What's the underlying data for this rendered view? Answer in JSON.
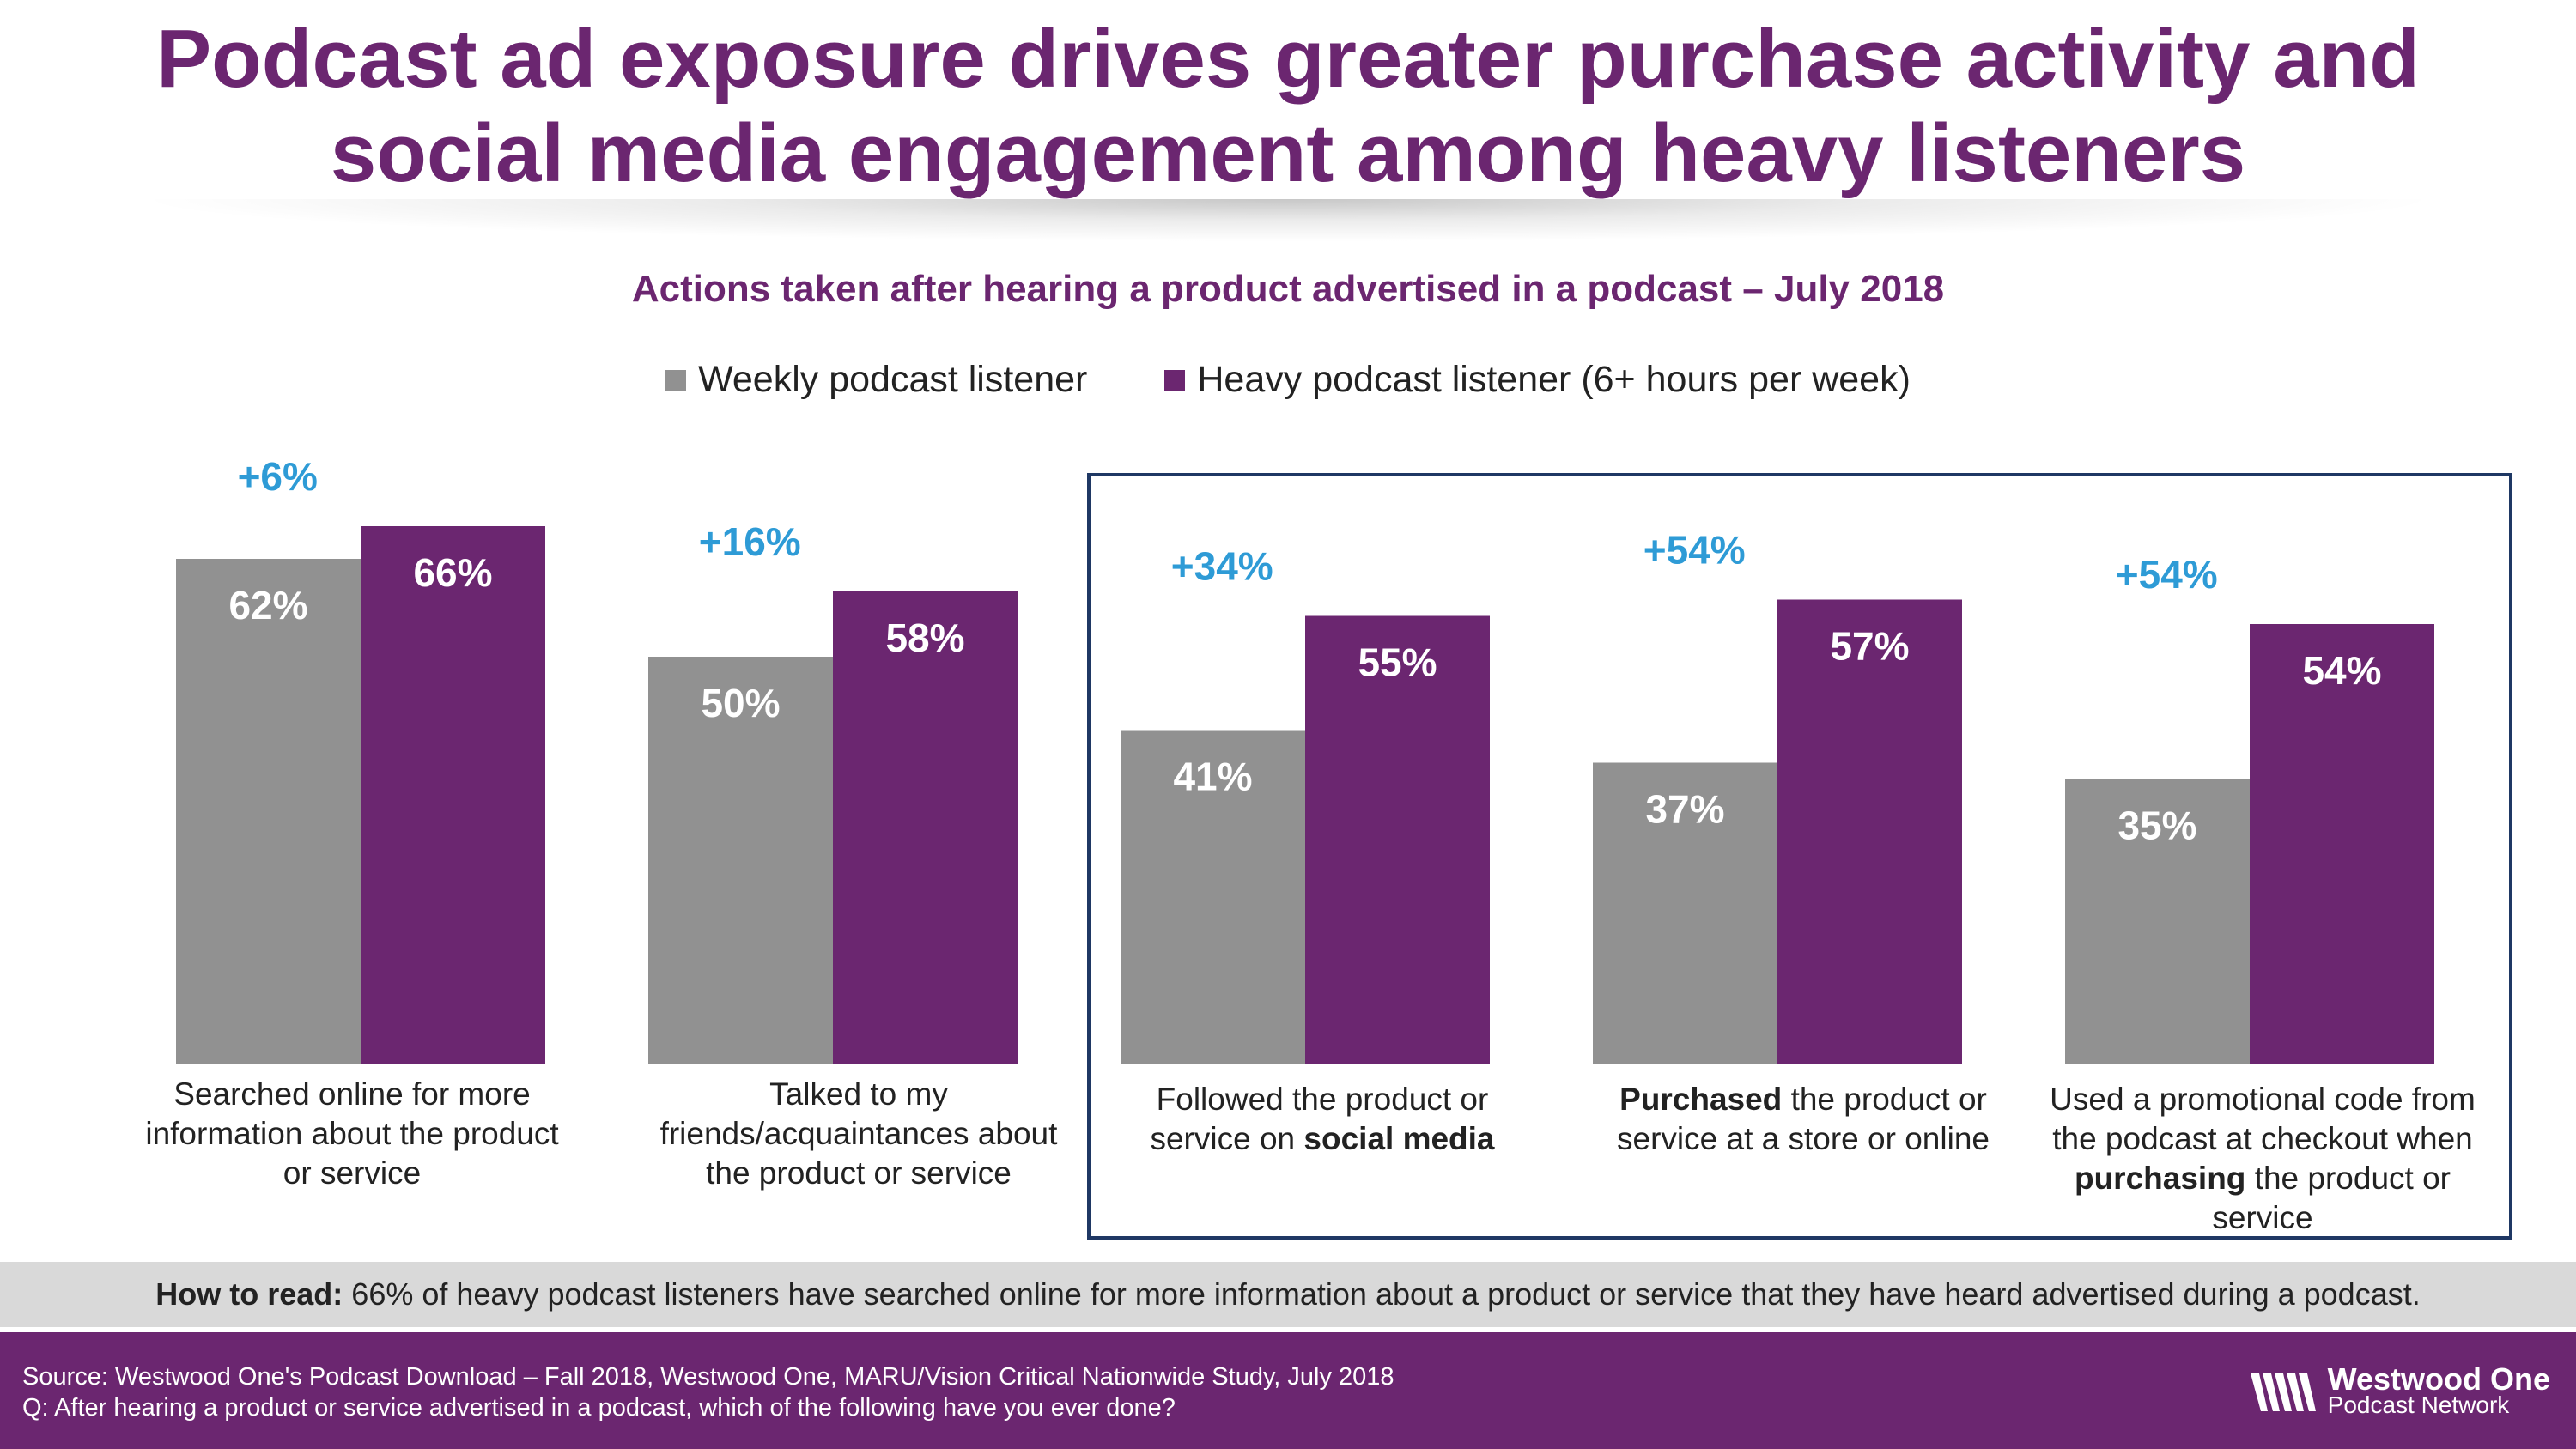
{
  "header": {
    "title_line1": "Podcast ad exposure drives greater purchase activity and",
    "title_line2": "social media engagement among heavy listeners"
  },
  "chart_data": {
    "type": "bar",
    "title": "Actions taken after hearing a product advertised in a podcast – July 2018",
    "ylim": [
      0,
      70
    ],
    "grid": false,
    "legend_position": "top",
    "categories": [
      "Searched online for more information about the product or service",
      "Talked to my friends/acquaintances about the product or service",
      "Followed the product or service on social media",
      "Purchased the product or service at a store or online",
      "Used a promotional code from the podcast at checkout when purchasing the product or service"
    ],
    "series": [
      {
        "name": "Weekly podcast listener",
        "color": "#919191",
        "values": [
          62,
          50,
          41,
          37,
          35
        ],
        "labels": [
          "62%",
          "50%",
          "41%",
          "37%",
          "35%"
        ]
      },
      {
        "name": "Heavy podcast listener (6+ hours per week)",
        "color": "#6b2670",
        "values": [
          66,
          58,
          55,
          57,
          54
        ],
        "labels": [
          "66%",
          "58%",
          "55%",
          "57%",
          "54%"
        ]
      }
    ],
    "lift_labels": [
      "+6%",
      "+16%",
      "+34%",
      "+54%",
      "+54%"
    ],
    "lift_color": "#2e9bd6",
    "highlight_box_color": "#1f3864"
  },
  "labels": {
    "cat1": "Searched online for more information about the product or service",
    "cat2": "Talked to my friends/acquaintances about the product or service",
    "cat3_a": "Followed the product or service on",
    "cat3_b": "social media",
    "cat4_a": "Purchased",
    "cat4_b": "the product or service at a store or online",
    "cat5_a": "Used a promotional code from the podcast at checkout when",
    "cat5_b": "purchasing",
    "cat5_c": "the product or service"
  },
  "howto": {
    "bold": "How to read:",
    "text": "66% of heavy podcast listeners have searched online for more information about a product or service that they have heard advertised during a podcast."
  },
  "footer": {
    "source": "Source: Westwood One's Podcast Download – Fall 2018, Westwood One, MARU/Vision Critical Nationwide Study, July 2018",
    "question": "Q:  After hearing a product or service advertised in a podcast, which of the following have you ever done?",
    "logo_name": "Westwood One",
    "logo_sub": "Podcast Network",
    "logo_icon": "westwood-wave-icon"
  }
}
